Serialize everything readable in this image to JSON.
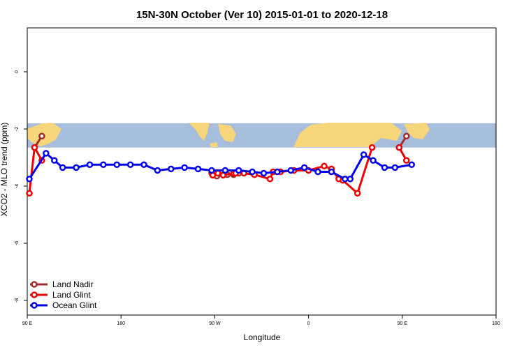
{
  "chart_data": {
    "type": "line",
    "title": "15N-30N October (Ver 10)   2015-01-01 to 2020-12-18",
    "xlabel": "Longitude",
    "ylabel": "XCO2 - MLO trend (ppm)",
    "xlim": [
      90,
      450
    ],
    "ylim": [
      -8.2,
      1.5
    ],
    "x_ticks": [
      {
        "value": 90,
        "label": "90 E"
      },
      {
        "value": 180,
        "label": "180"
      },
      {
        "value": 270,
        "label": "90 W"
      },
      {
        "value": 360,
        "label": "0"
      },
      {
        "value": 450,
        "label": "90 E"
      },
      {
        "value": 540,
        "label": "180"
      }
    ],
    "y_ticks": [
      {
        "value": 0,
        "label": "0"
      },
      {
        "value": -2,
        "label": "-2"
      },
      {
        "value": -4,
        "label": "-4"
      },
      {
        "value": -6,
        "label": "-6"
      },
      {
        "value": -8,
        "label": "-8"
      }
    ],
    "map_band": {
      "y_top": -1.8,
      "y_bottom": -2.65,
      "ocean_color": "#a7bddc",
      "land_color": "#f7d57a"
    },
    "legend_position": "bottom-left",
    "grid": false,
    "series": [
      {
        "name": "Land Nadir",
        "color": "#a52a2a",
        "points": [
          [
            97,
            -2.65
          ],
          [
            104,
            -2.25
          ],
          [
            447,
            -2.65
          ],
          [
            454,
            -2.25
          ],
          [
            267,
            -3.55
          ],
          [
            272,
            -3.65
          ],
          [
            282,
            -3.6
          ],
          [
            288,
            -3.6
          ],
          [
            293,
            -3.55
          ]
        ]
      },
      {
        "name": "Land Glint",
        "color": "#ee0000",
        "points": [
          [
            97,
            -2.65
          ],
          [
            104,
            -3.1
          ],
          [
            447,
            -2.65
          ],
          [
            454,
            -3.1
          ],
          [
            92,
            -4.25
          ],
          [
            268,
            -3.62
          ],
          [
            273,
            -3.55
          ],
          [
            278,
            -3.62
          ],
          [
            288,
            -3.55
          ],
          [
            290,
            -3.55
          ],
          [
            298,
            -3.55
          ],
          [
            308,
            -3.6
          ],
          [
            323,
            -3.75
          ],
          [
            326,
            -3.5
          ],
          [
            333,
            -3.5
          ],
          [
            346,
            -3.45
          ],
          [
            360,
            -3.45
          ],
          [
            375,
            -3.3
          ],
          [
            382,
            -3.4
          ],
          [
            389,
            -3.75
          ],
          [
            393,
            -3.8
          ],
          [
            407,
            -4.25
          ],
          [
            421,
            -2.65
          ]
        ]
      },
      {
        "name": "Ocean Glint",
        "color": "#0000ee",
        "points": [
          [
            92,
            -3.75
          ],
          [
            108,
            -2.85
          ],
          [
            116,
            -3.1
          ],
          [
            124,
            -3.35
          ],
          [
            137,
            -3.35
          ],
          [
            150,
            -3.25
          ],
          [
            163,
            -3.25
          ],
          [
            176,
            -3.25
          ],
          [
            189,
            -3.25
          ],
          [
            202,
            -3.25
          ],
          [
            215,
            -3.45
          ],
          [
            228,
            -3.4
          ],
          [
            241,
            -3.35
          ],
          [
            254,
            -3.4
          ],
          [
            267,
            -3.45
          ],
          [
            280,
            -3.45
          ],
          [
            293,
            -3.45
          ],
          [
            306,
            -3.5
          ],
          [
            317,
            -3.55
          ],
          [
            330,
            -3.5
          ],
          [
            343,
            -3.45
          ],
          [
            356,
            -3.35
          ],
          [
            369,
            -3.5
          ],
          [
            382,
            -3.5
          ],
          [
            395,
            -3.75
          ],
          [
            400,
            -3.75
          ],
          [
            413,
            -2.9
          ],
          [
            422,
            -3.1
          ],
          [
            433,
            -3.35
          ],
          [
            443,
            -3.35
          ],
          [
            459,
            -3.25
          ]
        ]
      }
    ]
  }
}
